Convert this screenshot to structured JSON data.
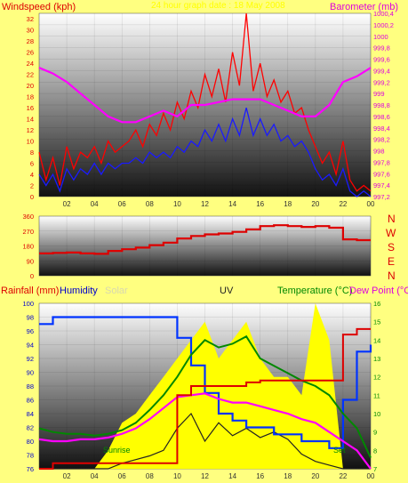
{
  "header": {
    "left_title": "Windspeed (kph)",
    "center_title": "24 hour graph date : 18 May 2008",
    "right_title": "Barometer (mb)"
  },
  "bottom_header": {
    "rainfall": "Rainfall (mm)",
    "humidity": "Humidity",
    "solar": "Solar",
    "uv": "UV",
    "temperature": "Temperature (°C)",
    "dewpoint": "Dew Point (°C"
  },
  "annotations": {
    "sunrise": "Sunrise",
    "sunset": "Set"
  },
  "compass": [
    "N",
    "W",
    "S",
    "E",
    "N"
  ],
  "colors": {
    "background": "#ffff80",
    "windspeed": "#ff0000",
    "gust": "#1a1aff",
    "barometer": "#ff00ff",
    "direction": "#dd0000",
    "humidity": "#0033ff",
    "rainfall": "#dd0000",
    "solar": "#ffff00",
    "temperature": "#008800",
    "dewpoint": "#ff00ff",
    "uv": "#222222"
  },
  "chart_data": [
    {
      "type": "line",
      "name": "wind-barometer",
      "x_ticks": [
        "02",
        "04",
        "06",
        "08",
        "10",
        "12",
        "14",
        "16",
        "18",
        "20",
        "22",
        "00"
      ],
      "xlim": [
        0,
        24
      ],
      "y_left_ticks": [
        "0",
        "2",
        "4",
        "6",
        "8",
        "10",
        "12",
        "14",
        "16",
        "18",
        "20",
        "22",
        "24",
        "26",
        "28",
        "30",
        "32"
      ],
      "ylim_left": [
        0,
        33
      ],
      "y_right_ticks": [
        "997,2",
        "997,4",
        "997,6",
        "997,8",
        "998",
        "998,2",
        "998,4",
        "998,6",
        "998,8",
        "999",
        "999,2",
        "999,4",
        "999,6",
        "999,8",
        "1000",
        "1000,2",
        "1000,4"
      ],
      "ylim_right": [
        997.2,
        1000.4
      ],
      "series": [
        {
          "key": "windspeed",
          "x": [
            0,
            0.5,
            1,
            1.5,
            2,
            2.5,
            3,
            3.5,
            4,
            4.5,
            5,
            5.5,
            6,
            6.5,
            7,
            7.5,
            8,
            8.5,
            9,
            9.5,
            10,
            10.5,
            11,
            11.5,
            12,
            12.5,
            13,
            13.5,
            14,
            14.5,
            15,
            15.5,
            16,
            16.5,
            17,
            17.5,
            18,
            18.5,
            19,
            19.5,
            20,
            20.5,
            21,
            21.5,
            22,
            22.5,
            23,
            23.5,
            24
          ],
          "values": [
            8,
            3,
            7,
            2,
            9,
            5,
            8,
            7,
            9,
            6,
            10,
            8,
            9,
            10,
            12,
            9,
            13,
            11,
            15,
            12,
            17,
            14,
            19,
            16,
            22,
            18,
            23,
            17,
            26,
            20,
            33,
            19,
            24,
            18,
            21,
            17,
            19,
            15,
            16,
            12,
            9,
            6,
            8,
            4,
            10,
            3,
            1,
            2,
            1
          ]
        },
        {
          "key": "gust",
          "x": [
            0,
            0.5,
            1,
            1.5,
            2,
            2.5,
            3,
            3.5,
            4,
            4.5,
            5,
            5.5,
            6,
            6.5,
            7,
            7.5,
            8,
            8.5,
            9,
            9.5,
            10,
            10.5,
            11,
            11.5,
            12,
            12.5,
            13,
            13.5,
            14,
            14.5,
            15,
            15.5,
            16,
            16.5,
            17,
            17.5,
            18,
            18.5,
            19,
            19.5,
            20,
            20.5,
            21,
            21.5,
            22,
            22.5,
            23,
            23.5,
            24
          ],
          "values": [
            4,
            2,
            4,
            1,
            5,
            3,
            5,
            4,
            6,
            4,
            6,
            5,
            6,
            6,
            7,
            6,
            8,
            7,
            8,
            7,
            9,
            8,
            10,
            9,
            12,
            10,
            13,
            10,
            14,
            11,
            16,
            11,
            14,
            11,
            13,
            10,
            11,
            9,
            10,
            8,
            5,
            3,
            4,
            2,
            5,
            1,
            0,
            1,
            0
          ]
        },
        {
          "key": "barometer",
          "x": [
            0,
            1,
            2,
            3,
            4,
            5,
            6,
            7,
            8,
            9,
            10,
            11,
            12,
            13,
            14,
            15,
            16,
            17,
            18,
            19,
            20,
            21,
            22,
            23,
            24
          ],
          "values": [
            999.45,
            999.35,
            999.2,
            999,
            998.8,
            998.6,
            998.5,
            998.5,
            998.6,
            998.7,
            998.6,
            998.8,
            998.8,
            998.85,
            998.9,
            998.9,
            998.9,
            998.8,
            998.7,
            998.6,
            998.6,
            998.8,
            999.2,
            999.3,
            999.45
          ]
        }
      ]
    },
    {
      "type": "line",
      "name": "wind-direction",
      "xlim": [
        0,
        24
      ],
      "y_ticks": [
        "0",
        "90",
        "180",
        "270",
        "360"
      ],
      "ylim": [
        0,
        360
      ],
      "x": [
        0,
        1,
        2,
        3,
        4,
        5,
        6,
        7,
        8,
        9,
        10,
        11,
        12,
        13,
        14,
        15,
        16,
        17,
        18,
        19,
        20,
        21,
        22,
        23,
        24
      ],
      "values": [
        135,
        138,
        140,
        135,
        132,
        150,
        160,
        170,
        185,
        200,
        225,
        240,
        250,
        255,
        265,
        280,
        300,
        305,
        300,
        295,
        300,
        290,
        220,
        215,
        215
      ]
    },
    {
      "type": "line",
      "name": "climate",
      "x_ticks": [
        "02",
        "04",
        "06",
        "08",
        "10",
        "12",
        "14",
        "16",
        "18",
        "20",
        "22",
        "00"
      ],
      "xlim": [
        0,
        24
      ],
      "y_left_ticks": [
        "76",
        "78",
        "80",
        "82",
        "84",
        "86",
        "88",
        "90",
        "92",
        "94",
        "96",
        "98",
        "100"
      ],
      "ylim_left": [
        76,
        100
      ],
      "y_right_ticks": [
        "7",
        "8",
        "9",
        "10",
        "11",
        "12",
        "13",
        "14",
        "15",
        "16"
      ],
      "ylim_right": [
        7,
        16
      ],
      "series": [
        {
          "key": "humidity",
          "x": [
            0,
            1,
            2,
            3,
            4,
            5,
            6,
            7,
            8,
            9,
            10,
            11,
            12,
            13,
            14,
            15,
            16,
            17,
            18,
            19,
            20,
            21,
            22,
            23,
            24
          ],
          "values": [
            97,
            98,
            98,
            98,
            98,
            98,
            98,
            98,
            98,
            98,
            95,
            91,
            87,
            84,
            83,
            82,
            82,
            81,
            81,
            80,
            80,
            79,
            86,
            93,
            94
          ]
        },
        {
          "key": "temperature",
          "x": [
            0,
            1,
            2,
            3,
            4,
            5,
            6,
            7,
            8,
            9,
            10,
            11,
            12,
            13,
            14,
            15,
            16,
            17,
            18,
            19,
            20,
            21,
            22,
            23,
            24
          ],
          "values": [
            9.2,
            9.0,
            8.9,
            8.9,
            8.8,
            8.9,
            9.1,
            9.5,
            10.2,
            11.0,
            12.0,
            13.2,
            14.0,
            13.6,
            13.8,
            14.2,
            13.0,
            12.6,
            12.2,
            11.8,
            11.5,
            11.0,
            10.0,
            9.2,
            7.6
          ]
        },
        {
          "key": "dewpoint",
          "x": [
            0,
            1,
            2,
            3,
            4,
            5,
            6,
            7,
            8,
            9,
            10,
            11,
            12,
            13,
            14,
            15,
            16,
            17,
            18,
            19,
            20,
            21,
            22,
            23,
            24
          ],
          "values": [
            8.6,
            8.5,
            8.5,
            8.6,
            8.6,
            8.7,
            8.9,
            9.2,
            9.7,
            10.3,
            10.9,
            11.0,
            11.1,
            10.8,
            10.6,
            10.6,
            10.4,
            10.2,
            10.0,
            9.7,
            9.5,
            9.0,
            8.5,
            8.0,
            7.0
          ]
        },
        {
          "key": "rainfall",
          "x": [
            0,
            1,
            2,
            3,
            4,
            5,
            6,
            7,
            8,
            9,
            10,
            11,
            12,
            13,
            14,
            15,
            16,
            17,
            18,
            19,
            20,
            21,
            22,
            23,
            24
          ],
          "values": [
            7.0,
            7.3,
            7.3,
            7.3,
            7.3,
            7.3,
            7.3,
            7.3,
            7.3,
            7.3,
            11.0,
            11.5,
            11.5,
            11.5,
            11.5,
            11.7,
            11.8,
            11.8,
            11.8,
            11.8,
            11.8,
            11.8,
            14.3,
            14.6,
            14.6
          ]
        },
        {
          "key": "solar",
          "x": [
            0,
            1,
            2,
            3,
            4,
            5,
            6,
            7,
            8,
            9,
            10,
            11,
            12,
            13,
            14,
            15,
            16,
            17,
            18,
            19,
            20,
            21,
            22,
            23,
            24
          ],
          "values": [
            7,
            7,
            7,
            7,
            7,
            8,
            9.5,
            10,
            11,
            12,
            13,
            14,
            15,
            13,
            14,
            15,
            13,
            12,
            12,
            11,
            16,
            14,
            7,
            7,
            7
          ]
        },
        {
          "key": "uv",
          "x": [
            0,
            1,
            2,
            3,
            4,
            5,
            6,
            7,
            8,
            9,
            10,
            11,
            12,
            13,
            14,
            15,
            16,
            17,
            18,
            19,
            20,
            21,
            22,
            23,
            24
          ],
          "values": [
            7,
            7,
            7,
            7,
            7,
            7,
            7.3,
            7.5,
            7.7,
            8.0,
            9.2,
            10.0,
            8.5,
            9.5,
            8.8,
            9.2,
            8.7,
            9.0,
            8.6,
            7.8,
            7.4,
            7.2,
            7,
            7,
            7
          ]
        }
      ]
    }
  ]
}
